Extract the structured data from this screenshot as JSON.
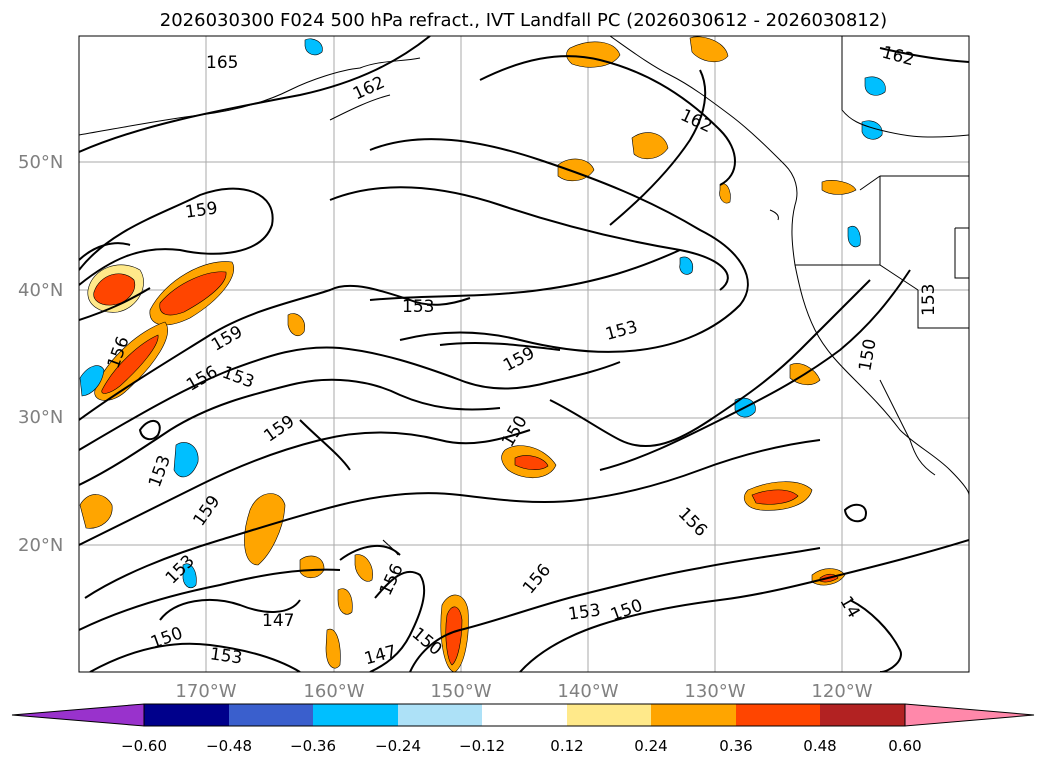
{
  "title": "2026030300 F024 500 hPa refract., IVT Landfall PC (2026030612 - 2026030812)",
  "map": {
    "lat_labels": [
      "50°N",
      "40°N",
      "30°N",
      "20°N"
    ],
    "lon_labels": [
      "170°W",
      "160°W",
      "150°W",
      "140°W",
      "130°W",
      "120°W"
    ],
    "contour_labels": [
      "165",
      "162",
      "162",
      "162",
      "159",
      "159",
      "159",
      "159",
      "159",
      "156",
      "156",
      "156",
      "156",
      "156",
      "153",
      "153",
      "153",
      "153",
      "153",
      "153",
      "153",
      "153",
      "150",
      "150",
      "150",
      "150",
      "150",
      "147",
      "147",
      "14"
    ]
  },
  "colorbar": {
    "ticks": [
      "−0.60",
      "−0.48",
      "−0.36",
      "−0.24",
      "−0.12",
      "0.12",
      "0.24",
      "0.36",
      "0.48",
      "0.60"
    ],
    "colors": [
      "#9932CC",
      "#00008B",
      "#3A5FCD",
      "#00BFFF",
      "#ADE1F7",
      "#FFFFFF",
      "#FFE98A",
      "#FFA500",
      "#FF4500",
      "#B22222",
      "#FF88AA"
    ]
  },
  "colors": {
    "contour": "#000000",
    "grid": "#aaaaaa",
    "axis_label": "#808080"
  }
}
